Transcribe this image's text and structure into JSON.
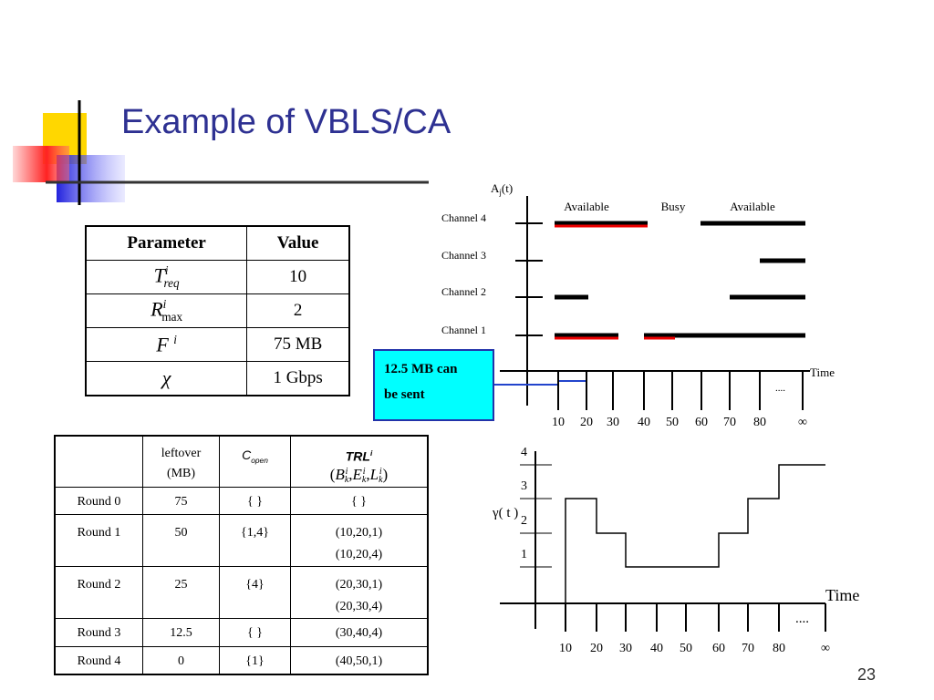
{
  "title": "Example of VBLS/CA",
  "params_table": {
    "header": [
      "Parameter",
      "Value"
    ],
    "rows": [
      [
        {
          "base": "T",
          "sup": "i",
          "sub": "req"
        },
        "10"
      ],
      [
        {
          "base": "R",
          "sup": "i",
          "sub": "max"
        },
        "2"
      ],
      [
        {
          "base": "F",
          "sup": "i"
        },
        "75 MB"
      ],
      [
        {
          "base": "χ"
        },
        "1 Gbps"
      ]
    ]
  },
  "rounds_table": {
    "header": {
      "leftover": [
        "leftover",
        "(MB)"
      ],
      "c_open": {
        "base": "C",
        "sub": "open"
      },
      "trl": {
        "base": "TRL",
        "sup": "i"
      },
      "trl_tuple": {
        "open": "(",
        "sep": ",",
        "close": ")",
        "terms": [
          {
            "base": "B",
            "sup": "i",
            "sub": "k"
          },
          {
            "base": "E",
            "sup": "i",
            "sub": "k"
          },
          {
            "base": "L",
            "sup": "i",
            "sub": "k"
          }
        ]
      }
    },
    "rows": [
      [
        "Round 0",
        "75",
        "{ }",
        [
          "{ }"
        ]
      ],
      [
        "Round 1",
        "50",
        "{1,4}",
        [
          "(10,20,1)",
          "(10,20,4)"
        ]
      ],
      [
        "Round 2",
        "25",
        "{4}",
        [
          "(20,30,1)",
          "(20,30,4)"
        ]
      ],
      [
        "Round 3",
        "12.5",
        "{ }",
        [
          "(30,40,4)"
        ]
      ],
      [
        "Round 4",
        "0",
        "{1}",
        [
          "(40,50,1)"
        ]
      ]
    ]
  },
  "channel_diagram": {
    "axis_label": {
      "base": "A",
      "sub": "j",
      "suffix": "(t)"
    },
    "channels": [
      "Channel 4",
      "Channel 3",
      "Channel 2",
      "Channel 1"
    ],
    "states": [
      "Available",
      "Busy",
      "Available"
    ],
    "x_label": "Time",
    "x_ticks": [
      "10",
      "20",
      "30",
      "40",
      "50",
      "60",
      "70",
      "80",
      "∞"
    ],
    "ellipsis": "....",
    "callout": [
      "12.5 MB can",
      "be sent"
    ]
  },
  "gamma_diagram": {
    "axis_label": "γ( t )",
    "y_ticks": [
      "1",
      "2",
      "3",
      "4"
    ],
    "x_label": "Time",
    "x_ticks": [
      "10",
      "20",
      "30",
      "40",
      "50",
      "60",
      "70",
      "80",
      "∞"
    ],
    "ellipsis": "...."
  },
  "page_number": "23"
}
